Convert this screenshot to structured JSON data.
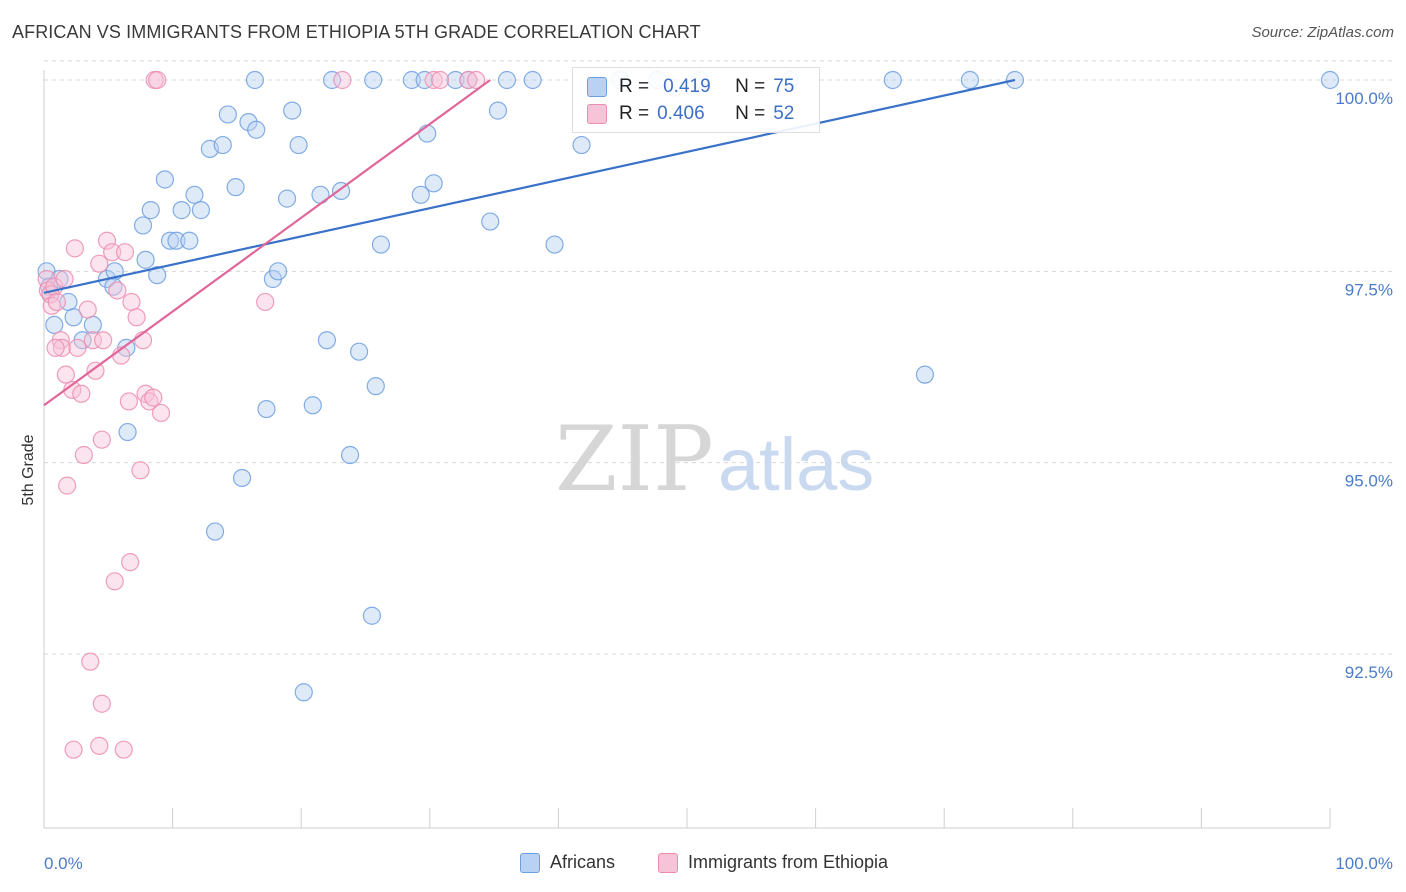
{
  "title": "AFRICAN VS IMMIGRANTS FROM ETHIOPIA 5TH GRADE CORRELATION CHART",
  "source": "Source: ZipAtlas.com",
  "watermark": {
    "zip": "ZIP",
    "atlas": "atlas"
  },
  "colors": {
    "blue": "#6d9fe0",
    "blue_fill": "#b9d1f2",
    "blue_line": "#3a72c9",
    "pink": "#ec8db0",
    "pink_fill": "#f6c4d6",
    "pink_line": "#e0669a",
    "tick_text": "#4a7cc7",
    "grid": "#d8d8d8"
  },
  "stats": {
    "rows": [
      {
        "r_label": "R =",
        "r_value": "0.419",
        "n_label": "N =",
        "n_value": "75"
      },
      {
        "r_label": "R =",
        "r_value": "0.406",
        "n_label": "N =",
        "n_value": "52"
      }
    ]
  },
  "chart_data": {
    "type": "scatter",
    "title": "AFRICAN VS IMMIGRANTS FROM ETHIOPIA 5TH GRADE CORRELATION CHART",
    "xlabel": "",
    "ylabel": "5th Grade",
    "xlim": [
      0,
      100
    ],
    "ylim": [
      90.4,
      100.25
    ],
    "x_tick_labels": [
      "0.0%",
      "100.0%"
    ],
    "y_ticks": [
      92.5,
      95.0,
      97.5,
      100.0
    ],
    "y_tick_labels": [
      "92.5%",
      "95.0%",
      "97.5%",
      "100.0%"
    ],
    "grid": true,
    "legend_position": "bottom",
    "series": [
      {
        "name": "Africans",
        "color": "#6d9fe0",
        "trend": {
          "x": [
            0,
            75.5
          ],
          "y": [
            97.22,
            100.0
          ]
        },
        "points": [
          [
            0.2,
            97.5
          ],
          [
            0.4,
            97.3
          ],
          [
            0.5,
            97.2
          ],
          [
            0.8,
            96.8
          ],
          [
            1.2,
            97.4
          ],
          [
            1.9,
            97.1
          ],
          [
            2.3,
            96.9
          ],
          [
            3.0,
            96.6
          ],
          [
            3.8,
            96.8
          ],
          [
            4.9,
            97.4
          ],
          [
            5.5,
            97.5
          ],
          [
            5.4,
            97.3
          ],
          [
            6.4,
            96.5
          ],
          [
            6.5,
            95.4
          ],
          [
            7.7,
            98.1
          ],
          [
            7.9,
            97.65
          ],
          [
            8.3,
            98.3
          ],
          [
            8.8,
            97.45
          ],
          [
            9.4,
            98.7
          ],
          [
            9.8,
            97.9
          ],
          [
            10.3,
            97.9
          ],
          [
            10.7,
            98.3
          ],
          [
            11.3,
            97.9
          ],
          [
            11.7,
            98.5
          ],
          [
            12.2,
            98.3
          ],
          [
            12.9,
            99.1
          ],
          [
            13.3,
            94.1
          ],
          [
            13.9,
            99.15
          ],
          [
            14.3,
            99.55
          ],
          [
            14.9,
            98.6
          ],
          [
            15.4,
            94.8
          ],
          [
            15.9,
            99.45
          ],
          [
            16.5,
            99.35
          ],
          [
            17.3,
            95.7
          ],
          [
            17.8,
            97.4
          ],
          [
            18.2,
            97.5
          ],
          [
            18.9,
            98.45
          ],
          [
            19.3,
            99.6
          ],
          [
            19.8,
            99.15
          ],
          [
            20.2,
            92.0
          ],
          [
            20.9,
            95.75
          ],
          [
            21.5,
            98.5
          ],
          [
            22.0,
            96.6
          ],
          [
            23.1,
            98.55
          ],
          [
            23.8,
            95.1
          ],
          [
            24.5,
            96.45
          ],
          [
            25.5,
            93.0
          ],
          [
            25.8,
            96.0
          ],
          [
            26.2,
            97.85
          ],
          [
            29.3,
            98.5
          ],
          [
            29.8,
            99.3
          ],
          [
            30.3,
            98.65
          ],
          [
            32.0,
            100.0
          ],
          [
            34.7,
            98.15
          ],
          [
            35.3,
            99.6
          ],
          [
            39.7,
            97.85
          ],
          [
            41.8,
            99.15
          ],
          [
            44.8,
            100.0
          ],
          [
            47.7,
            100.0
          ],
          [
            49.0,
            99.9
          ],
          [
            51.0,
            100.0
          ],
          [
            68.5,
            96.15
          ],
          [
            16.4,
            100.0
          ],
          [
            22.4,
            100.0
          ],
          [
            25.6,
            100.0
          ],
          [
            28.6,
            100.0
          ],
          [
            29.6,
            100.0
          ],
          [
            33.0,
            100.0
          ],
          [
            36.0,
            100.0
          ],
          [
            38.0,
            100.0
          ],
          [
            58.0,
            100.0
          ],
          [
            66.0,
            100.0
          ],
          [
            72.0,
            100.0
          ],
          [
            75.5,
            100.0
          ],
          [
            100.0,
            100.0
          ]
        ]
      },
      {
        "name": "Immigrants from Ethiopia",
        "color": "#ec8db0",
        "trend": {
          "x": [
            0,
            34.7
          ],
          "y": [
            95.75,
            100.0
          ]
        },
        "points": [
          [
            0.2,
            97.4
          ],
          [
            0.3,
            97.25
          ],
          [
            0.5,
            97.2
          ],
          [
            0.6,
            97.05
          ],
          [
            0.8,
            97.3
          ],
          [
            1.0,
            97.1
          ],
          [
            1.3,
            96.6
          ],
          [
            1.4,
            96.5
          ],
          [
            1.6,
            97.4
          ],
          [
            1.7,
            96.15
          ],
          [
            1.8,
            94.7
          ],
          [
            2.2,
            95.95
          ],
          [
            2.4,
            97.8
          ],
          [
            2.6,
            96.5
          ],
          [
            2.9,
            95.9
          ],
          [
            3.1,
            95.1
          ],
          [
            3.4,
            97.0
          ],
          [
            3.8,
            96.6
          ],
          [
            4.0,
            96.2
          ],
          [
            4.3,
            97.6
          ],
          [
            4.5,
            95.3
          ],
          [
            4.6,
            96.6
          ],
          [
            4.9,
            97.9
          ],
          [
            5.3,
            97.75
          ],
          [
            5.7,
            97.25
          ],
          [
            6.0,
            96.4
          ],
          [
            6.3,
            97.75
          ],
          [
            6.6,
            95.8
          ],
          [
            6.8,
            97.1
          ],
          [
            7.2,
            96.9
          ],
          [
            7.5,
            94.9
          ],
          [
            7.7,
            96.6
          ],
          [
            7.9,
            95.9
          ],
          [
            8.2,
            95.8
          ],
          [
            8.5,
            95.85
          ],
          [
            9.1,
            95.65
          ],
          [
            17.2,
            97.1
          ],
          [
            4.3,
            91.3
          ],
          [
            4.5,
            91.85
          ],
          [
            3.6,
            92.4
          ],
          [
            5.5,
            93.45
          ],
          [
            6.7,
            93.7
          ],
          [
            2.3,
            91.25
          ],
          [
            6.2,
            91.25
          ],
          [
            8.6,
            100.0
          ],
          [
            8.8,
            100.0
          ],
          [
            23.2,
            100.0
          ],
          [
            30.3,
            100.0
          ],
          [
            30.8,
            100.0
          ],
          [
            33.0,
            100.0
          ],
          [
            33.6,
            100.0
          ],
          [
            0.9,
            96.5
          ]
        ]
      }
    ]
  },
  "legend": {
    "items": [
      {
        "label": "Africans"
      },
      {
        "label": "Immigrants from Ethiopia"
      }
    ]
  }
}
